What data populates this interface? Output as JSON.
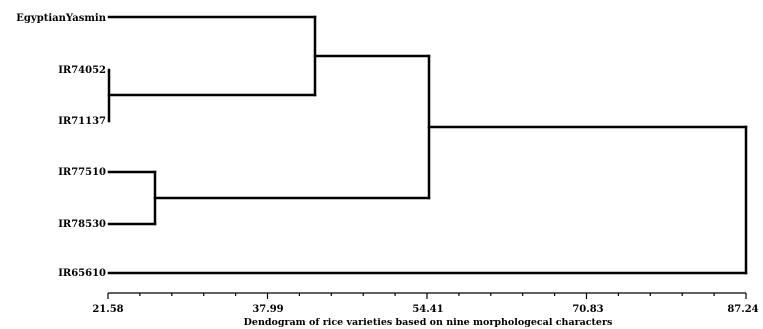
{
  "diagram": {
    "type": "dendrogram",
    "caption": "Dendogram of rice varieties based on nine morphologecal characters",
    "axis": {
      "tick_labels": [
        "21.58",
        "37.99",
        "54.41",
        "70.83",
        "87.24"
      ],
      "min": 21.58,
      "max": 87.24
    },
    "leaves": [
      "EgyptianYasmin",
      "IR74052",
      "IR71137",
      "IR77510",
      "IR78530",
      "IR65610"
    ],
    "merges": [
      {
        "a": "IR74052",
        "b": "IR71137",
        "height": 21.6
      },
      {
        "a": "IR77510",
        "b": "IR78530",
        "height": 24.5
      },
      {
        "a": "EgyptianYasmin",
        "b": "IR74052+IR71137",
        "height": 42.8
      },
      {
        "a": "EgyptianYasmin+IR74052+IR71137",
        "b": "IR77510+IR78530",
        "height": 54.4
      },
      {
        "a": "all-others",
        "b": "IR65610",
        "height": 87.2
      }
    ]
  }
}
